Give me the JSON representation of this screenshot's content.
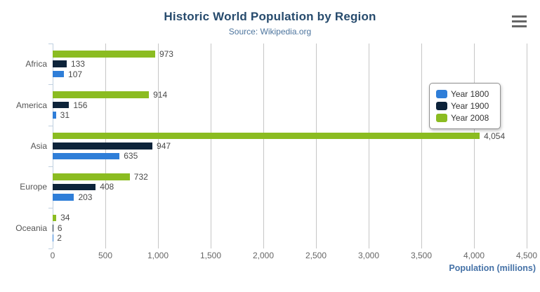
{
  "chart_data": {
    "type": "bar",
    "orientation": "horizontal",
    "title": "Historic World Population by Region",
    "subtitle": "Source: Wikipedia.org",
    "xlabel": "Population (millions)",
    "ylabel": "",
    "categories": [
      "Africa",
      "America",
      "Asia",
      "Europe",
      "Oceania"
    ],
    "series": [
      {
        "name": "Year 1800",
        "color": "#2f7ed8",
        "values": [
          107,
          31,
          635,
          203,
          2
        ],
        "value_labels": [
          "107",
          "31",
          "635",
          "203",
          "2"
        ]
      },
      {
        "name": "Year 1900",
        "color": "#0d233a",
        "values": [
          133,
          156,
          947,
          408,
          6
        ],
        "value_labels": [
          "133",
          "156",
          "947",
          "408",
          "6"
        ]
      },
      {
        "name": "Year 2008",
        "color": "#8bbc21",
        "values": [
          973,
          914,
          4054,
          732,
          34
        ],
        "value_labels": [
          "973",
          "914",
          "4,054",
          "732",
          "34"
        ]
      }
    ],
    "series_order_top_to_bottom": [
      "Year 2008",
      "Year 1900",
      "Year 1800"
    ],
    "xlim": [
      0,
      4500
    ],
    "x_tick_values": [
      0,
      500,
      1000,
      1500,
      2000,
      2500,
      3000,
      3500,
      4000,
      4500
    ],
    "x_tick_labels": [
      "0",
      "500",
      "1,000",
      "1,500",
      "2,000",
      "2,500",
      "3,000",
      "3,500",
      "4,000",
      "4,500"
    ],
    "grid": true,
    "legend": {
      "position": "right",
      "items": [
        "Year 1800",
        "Year 1900",
        "Year 2008"
      ]
    }
  },
  "style_colors": {
    "title": "#274b6d",
    "subtitle": "#4d759e",
    "axis_title": "#4572a7",
    "tick_label": "#666666",
    "category_label": "#555555",
    "value_label": "#4a4a4a",
    "grid_line": "#c6c6c6",
    "axis_line": "#c0d0e0",
    "legend_border": "#909090",
    "legend_text": "#333333",
    "menu_icon": "#666666"
  }
}
